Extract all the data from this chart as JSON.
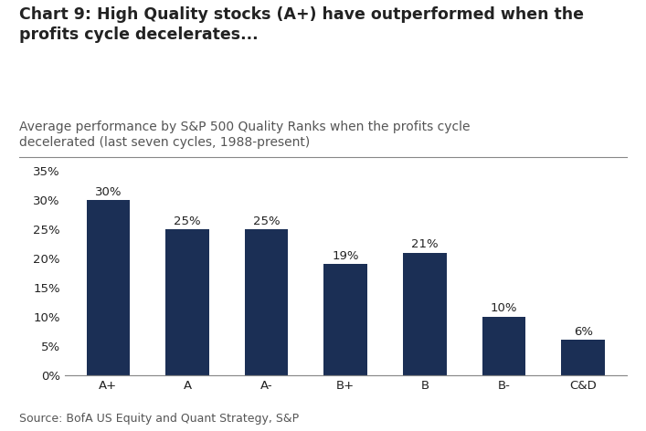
{
  "title_bold": "Chart 9: High Quality stocks (A+) have outperformed when the\nprofits cycle decelerates...",
  "subtitle": "Average performance by S&P 500 Quality Ranks when the profits cycle\ndecelerated (last seven cycles, 1988-present)",
  "categories": [
    "A+",
    "A",
    "A-",
    "B+",
    "B",
    "B-",
    "C&D"
  ],
  "values": [
    30,
    25,
    25,
    19,
    21,
    10,
    6
  ],
  "bar_color": "#1b2f55",
  "ylim": [
    0,
    37
  ],
  "yticks": [
    0,
    5,
    10,
    15,
    20,
    25,
    30,
    35
  ],
  "ytick_labels": [
    "0%",
    "5%",
    "10%",
    "15%",
    "20%",
    "25%",
    "30%",
    "35%"
  ],
  "source": "Source: BofA US Equity and Quant Strategy, S&P",
  "title_fontsize": 12.5,
  "subtitle_fontsize": 10,
  "label_fontsize": 9.5,
  "tick_fontsize": 9.5,
  "source_fontsize": 9,
  "background_color": "#ffffff",
  "separator_color": "#888888",
  "text_color": "#222222",
  "subtitle_color": "#555555"
}
